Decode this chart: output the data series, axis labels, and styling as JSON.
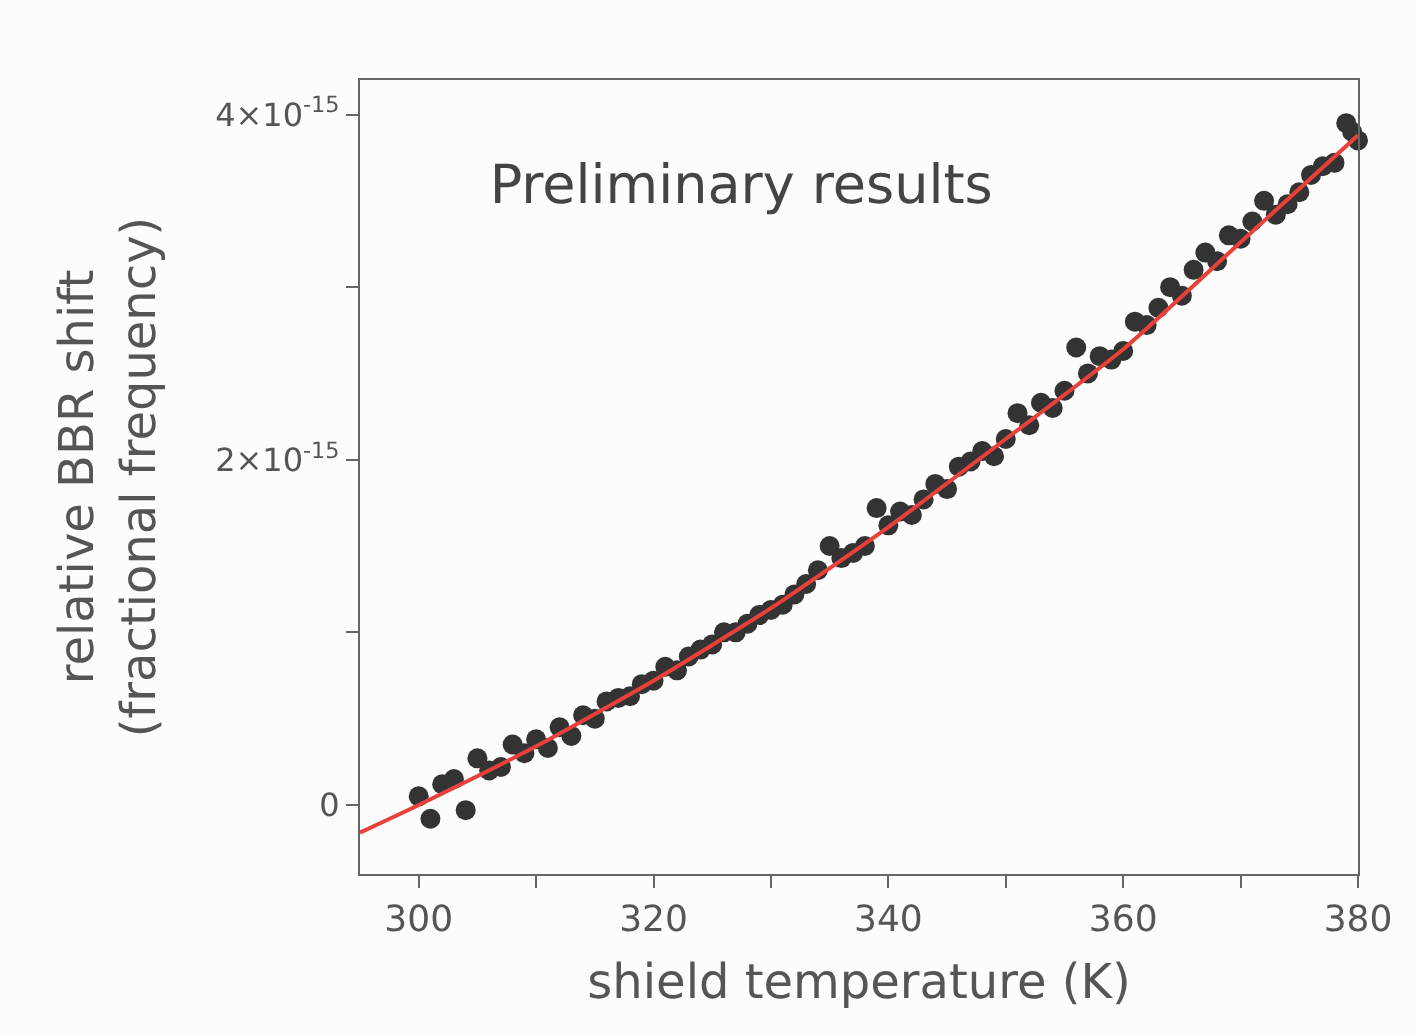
{
  "chart_data": {
    "type": "scatter",
    "title": "Preliminary results",
    "xlabel": "shield temperature (K)",
    "ylabel": "relative BBR shift\n(fractional frequency)",
    "xlim": [
      295,
      380
    ],
    "xticks": [
      300,
      320,
      340,
      360,
      380
    ],
    "ylim": [
      -4e-16,
      4.2e-15
    ],
    "yticks": [
      {
        "value": 0,
        "label": "0"
      },
      {
        "value": 1e-15,
        "label": null
      },
      {
        "value": 2e-15,
        "label": "2×10$^{-15}$"
      },
      {
        "value": 3e-15,
        "label": null
      },
      {
        "value": 4e-15,
        "label": "4×10$^{-15}$"
      }
    ],
    "grid": false,
    "marker": "circle",
    "series": [
      {
        "color": "#333333",
        "x": [
          300,
          301,
          302,
          303,
          304,
          305,
          306,
          307,
          308,
          309,
          310,
          311,
          312,
          313,
          314,
          315,
          316,
          317,
          318,
          319,
          320,
          321,
          322,
          323,
          324,
          325,
          326,
          327,
          328,
          329,
          330,
          331,
          332,
          333,
          334,
          335,
          336,
          337,
          338,
          339,
          340,
          341,
          342,
          343,
          344,
          345,
          346,
          347,
          348,
          349,
          350,
          351,
          352,
          353,
          354,
          355,
          356,
          357,
          358,
          359,
          360,
          361,
          362,
          363,
          364,
          365,
          366,
          367,
          368,
          369,
          370,
          371,
          372,
          373,
          374,
          375,
          376,
          377,
          378,
          379,
          379.5,
          380
        ],
        "values": [
          5e-17,
          -8e-17,
          1.2e-16,
          1.5e-16,
          -3e-17,
          2.7e-16,
          2e-16,
          2.2e-16,
          3.5e-16,
          3e-16,
          3.8e-16,
          3.3e-16,
          4.5e-16,
          4e-16,
          5.2e-16,
          5e-16,
          6e-16,
          6.2e-16,
          6.3e-16,
          7e-16,
          7.2e-16,
          8e-16,
          7.8e-16,
          8.6e-16,
          9e-16,
          9.3e-16,
          1e-15,
          1e-15,
          1.05e-15,
          1.1e-15,
          1.13e-15,
          1.16e-15,
          1.22e-15,
          1.28e-15,
          1.36e-15,
          1.5e-15,
          1.43e-15,
          1.46e-15,
          1.5e-15,
          1.72e-15,
          1.62e-15,
          1.7e-15,
          1.68e-15,
          1.77e-15,
          1.86e-15,
          1.83e-15,
          1.96e-15,
          1.99e-15,
          2.05e-15,
          2.02e-15,
          2.12e-15,
          2.27e-15,
          2.2e-15,
          2.33e-15,
          2.3e-15,
          2.4e-15,
          2.65e-15,
          2.5e-15,
          2.6e-15,
          2.58e-15,
          2.63e-15,
          2.8e-15,
          2.78e-15,
          2.88e-15,
          3e-15,
          2.95e-15,
          3.1e-15,
          3.2e-15,
          3.15e-15,
          3.3e-15,
          3.28e-15,
          3.38e-15,
          3.5e-15,
          3.42e-15,
          3.48e-15,
          3.55e-15,
          3.65e-15,
          3.7e-15,
          3.72e-15,
          3.95e-15,
          3.9e-15,
          3.85e-15
        ]
      },
      {
        "type": "line",
        "color": "#e8403a",
        "marker": "none",
        "x": [
          295,
          300,
          310,
          320,
          330,
          340,
          350,
          360,
          370,
          380
        ],
        "values": [
          -1.6e-16,
          0,
          3.4e-16,
          7.2e-16,
          1.14e-15,
          1.61e-15,
          2.12e-15,
          2.64e-15,
          3.26e-15,
          3.88e-15
        ]
      }
    ]
  }
}
